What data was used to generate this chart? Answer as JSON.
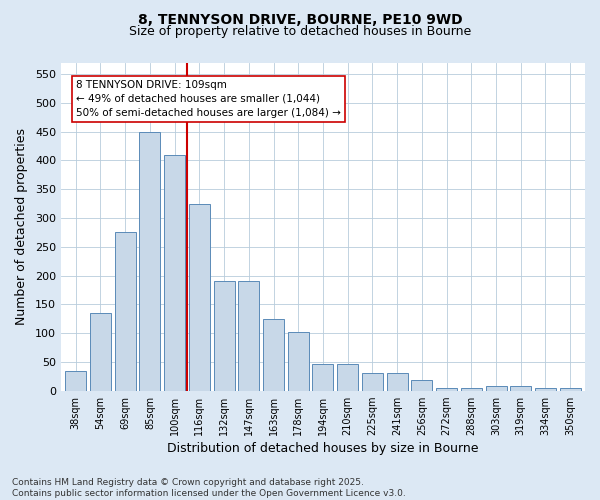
{
  "title_line1": "8, TENNYSON DRIVE, BOURNE, PE10 9WD",
  "title_line2": "Size of property relative to detached houses in Bourne",
  "xlabel": "Distribution of detached houses by size in Bourne",
  "ylabel": "Number of detached properties",
  "categories": [
    "38sqm",
    "54sqm",
    "69sqm",
    "85sqm",
    "100sqm",
    "116sqm",
    "132sqm",
    "147sqm",
    "163sqm",
    "178sqm",
    "194sqm",
    "210sqm",
    "225sqm",
    "241sqm",
    "256sqm",
    "272sqm",
    "288sqm",
    "303sqm",
    "319sqm",
    "334sqm",
    "350sqm"
  ],
  "values": [
    35,
    135,
    275,
    450,
    410,
    325,
    190,
    190,
    125,
    102,
    46,
    46,
    30,
    30,
    18,
    5,
    5,
    8,
    8,
    5,
    5
  ],
  "bar_color": "#c8d8e8",
  "bar_edge_color": "#5a8ab8",
  "vline_color": "#cc0000",
  "annotation_text": "8 TENNYSON DRIVE: 109sqm\n← 49% of detached houses are smaller (1,044)\n50% of semi-detached houses are larger (1,084) →",
  "annotation_box_edge": "#cc0000",
  "ylim_max": 570,
  "yticks": [
    0,
    50,
    100,
    150,
    200,
    250,
    300,
    350,
    400,
    450,
    500,
    550
  ],
  "footnote": "Contains HM Land Registry data © Crown copyright and database right 2025.\nContains public sector information licensed under the Open Government Licence v3.0.",
  "bg_color": "#dce8f4",
  "plot_bg_color": "#ffffff",
  "grid_color": "#b8ccdc"
}
